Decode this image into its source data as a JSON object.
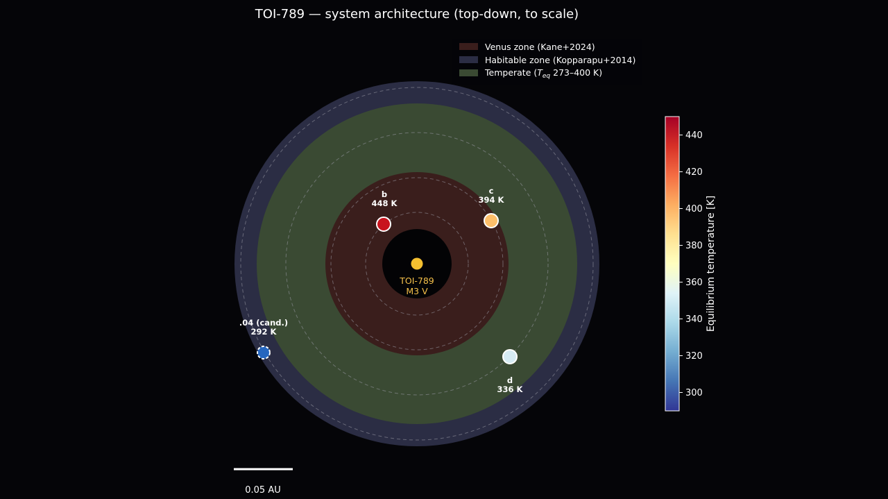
{
  "chart_data": {
    "type": "scatter",
    "title": "TOI-789 — system architecture (top-down, to scale)",
    "star": {
      "name": "TOI-789",
      "spectral_type": "M3 V",
      "color": "#f5c030"
    },
    "zones": [
      {
        "label": "Venus zone (Kane+2024)",
        "color": "#3a1e1c"
      },
      {
        "label": "Habitable zone (Kopparapu+2014)",
        "color": "#2b2d44"
      },
      {
        "label_prefix": "Temperate (",
        "label_sym": "T",
        "label_sub": "eq",
        "label_suffix": " 273–400 K)",
        "color": "#3a4a33"
      }
    ],
    "planets": [
      {
        "name": "b",
        "temp_label": "448 K",
        "teq": 448,
        "color": "#c8141e",
        "candidate": false
      },
      {
        "name": "c",
        "temp_label": "394 K",
        "teq": 394,
        "color": "#fdbf6a",
        "candidate": false
      },
      {
        "name": "d",
        "temp_label": "336 K",
        "teq": 336,
        "color": "#d6ebf4",
        "candidate": false
      },
      {
        "name": ".04 (cand.)",
        "temp_label": "292 K",
        "teq": 292,
        "color": "#2566bf",
        "candidate": true
      }
    ],
    "colorbar": {
      "label": "Equilibrium temperature [K]",
      "range": [
        290,
        450
      ],
      "ticks": [
        "300",
        "320",
        "340",
        "360",
        "380",
        "400",
        "420",
        "440"
      ],
      "colormap": [
        "#313695",
        "#4575b4",
        "#74add1",
        "#abd9e9",
        "#e0f3f8",
        "#ffffbf",
        "#fee090",
        "#fdae61",
        "#f46d43",
        "#d73027",
        "#a50026"
      ]
    },
    "scale_bar": {
      "label": "0.05 AU"
    }
  }
}
